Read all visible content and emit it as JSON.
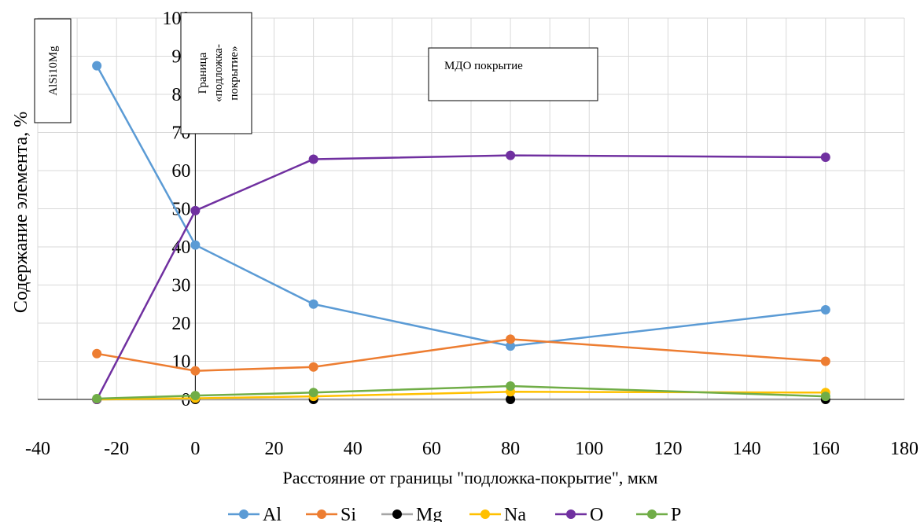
{
  "chart_data": {
    "type": "line",
    "title": "",
    "xlabel": "Расстояние от границы \"подложка-покрытие\", мкм",
    "ylabel": "Содержание элемента, %",
    "xlim": [
      -40,
      180
    ],
    "ylim": [
      0,
      100
    ],
    "x_ticks": [
      "-40",
      "-20",
      "0",
      "20",
      "40",
      "60",
      "80",
      "100",
      "120",
      "140",
      "160",
      "180"
    ],
    "y_ticks": [
      "0",
      "10",
      "20",
      "30",
      "40",
      "50",
      "60",
      "70",
      "80",
      "90",
      "100"
    ],
    "grid": true,
    "legend_position": "bottom",
    "x": [
      -25,
      0,
      30,
      80,
      160
    ],
    "series": [
      {
        "name": "Al",
        "color": "#5B9BD5",
        "values": [
          87.5,
          40.5,
          25,
          14,
          23.5
        ]
      },
      {
        "name": "Si",
        "color": "#ED7D31",
        "values": [
          12,
          7.5,
          8.5,
          15.8,
          10
        ]
      },
      {
        "name": "Mg",
        "color": "#000000",
        "line_color": "#A5A5A5",
        "values": [
          0,
          0,
          0,
          0,
          0
        ]
      },
      {
        "name": "Na",
        "color": "#FFC000",
        "values": [
          0,
          0.3,
          0.8,
          2,
          1.8
        ]
      },
      {
        "name": "O",
        "color": "#7030A0",
        "values": [
          0,
          49.5,
          63,
          64,
          63.5
        ]
      },
      {
        "name": "P",
        "color": "#70AD47",
        "values": [
          0.2,
          1,
          1.8,
          3.5,
          0.8
        ]
      }
    ],
    "annotations": [
      {
        "name": "alloy-label",
        "text": "AlSi10Mg"
      },
      {
        "name": "boundary-label",
        "lines": [
          "Граница",
          "«подложка-",
          "покрытие»"
        ]
      },
      {
        "name": "coating-label",
        "text": "МДО покрытие"
      }
    ]
  }
}
